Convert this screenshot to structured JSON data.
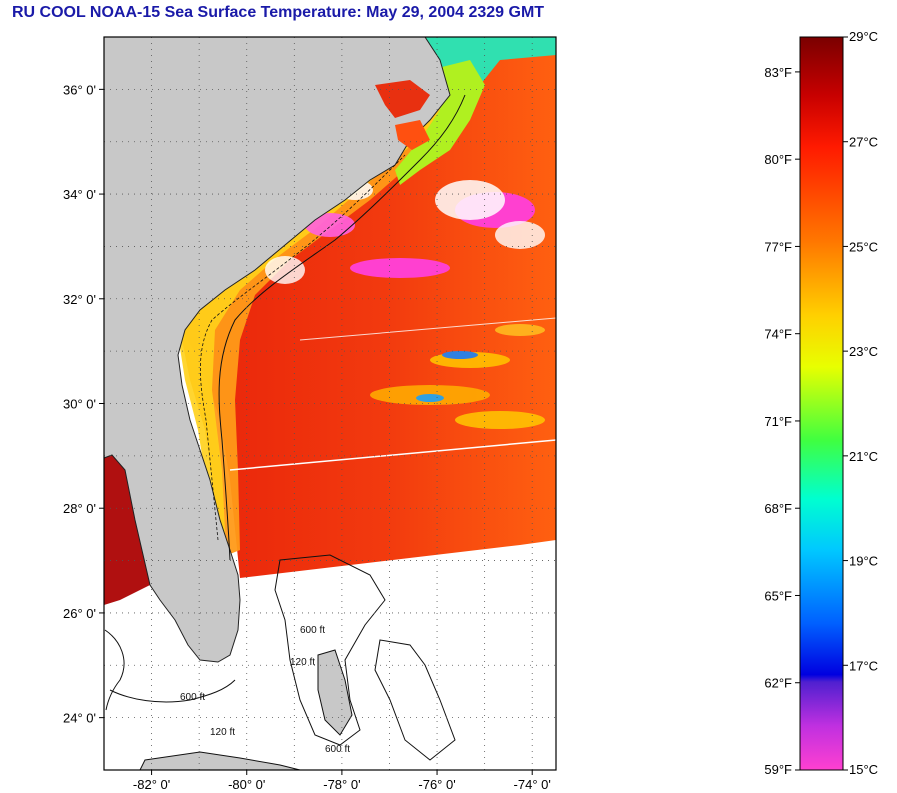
{
  "title": "RU COOL  NOAA-15  Sea Surface Temperature:  May 29, 2004 2329 GMT",
  "map": {
    "lat_range": [
      23,
      37
    ],
    "lon_range": [
      -83,
      -73.5
    ],
    "lat_ticks": [
      {
        "value": 36,
        "label": "36° 0'"
      },
      {
        "value": 34,
        "label": "34° 0'"
      },
      {
        "value": 32,
        "label": "32° 0'"
      },
      {
        "value": 30,
        "label": "30° 0'"
      },
      {
        "value": 28,
        "label": "28° 0'"
      },
      {
        "value": 26,
        "label": "26° 0'"
      },
      {
        "value": 24,
        "label": "24° 0'"
      }
    ],
    "lon_ticks": [
      {
        "value": -82,
        "label": "-82° 0'"
      },
      {
        "value": -80,
        "label": "-80° 0'"
      },
      {
        "value": -78,
        "label": "-78° 0'"
      },
      {
        "value": -76,
        "label": "-76° 0'"
      },
      {
        "value": -74,
        "label": "-74° 0'"
      }
    ],
    "bathymetry_labels": [
      "600 ft",
      "120 ft",
      "600 ft",
      "120 ft",
      "600 ft"
    ],
    "colors": {
      "land": "#c8c8c8",
      "gulf_stream": "#e8320f",
      "shelf_water": "#ff7a10",
      "coastal": "#ffd020",
      "cold_patch": "#40c0ff",
      "cloud": "#ff40d0",
      "no_data": "#ffffff"
    }
  },
  "colorbar": {
    "celsius": [
      {
        "value": 29,
        "label": "29°C"
      },
      {
        "value": 27,
        "label": "27°C"
      },
      {
        "value": 25,
        "label": "25°C"
      },
      {
        "value": 23,
        "label": "23°C"
      },
      {
        "value": 21,
        "label": "21°C"
      },
      {
        "value": 19,
        "label": "19°C"
      },
      {
        "value": 17,
        "label": "17°C"
      },
      {
        "value": 15,
        "label": "15°C"
      }
    ],
    "fahrenheit": [
      {
        "value": 83,
        "label": "83°F"
      },
      {
        "value": 80,
        "label": "80°F"
      },
      {
        "value": 77,
        "label": "77°F"
      },
      {
        "value": 74,
        "label": "74°F"
      },
      {
        "value": 71,
        "label": "71°F"
      },
      {
        "value": 68,
        "label": "68°F"
      },
      {
        "value": 65,
        "label": "65°F"
      },
      {
        "value": 62,
        "label": "62°F"
      },
      {
        "value": 59,
        "label": "59°F"
      }
    ]
  }
}
